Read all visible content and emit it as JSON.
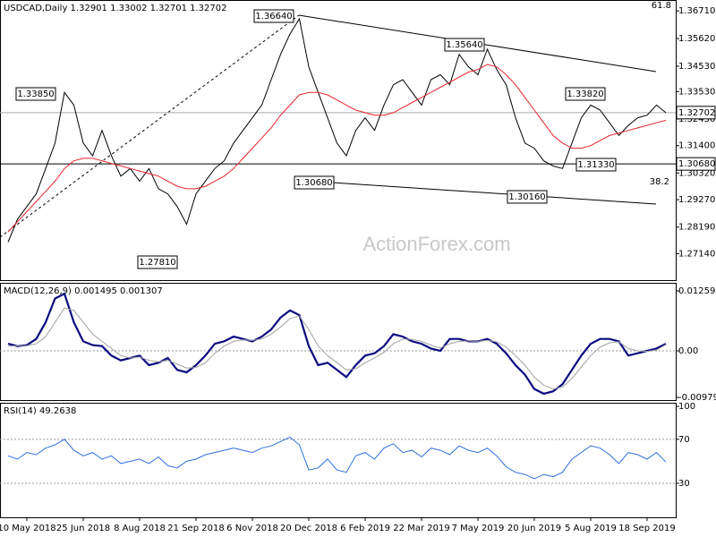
{
  "watermark": "ActionForex.com",
  "chart_data": [
    {
      "type": "line",
      "title": "USDCAD,Daily  1.32901 1.33002 1.32701 1.32702",
      "ylim": [
        1.261,
        1.3714
      ],
      "yticks": [
        {
          "value": 1.3671,
          "label": "1.36710"
        },
        {
          "value": 1.3562,
          "label": "1.35620"
        },
        {
          "value": 1.3453,
          "label": "1.34530"
        },
        {
          "value": 1.3353,
          "label": "1.33530"
        },
        {
          "value": 1.3245,
          "label": "1.32450"
        },
        {
          "value": 1.314,
          "label": "1.31400"
        },
        {
          "value": 1.3032,
          "label": "1.30320"
        },
        {
          "value": 1.2927,
          "label": "1.29270"
        },
        {
          "value": 1.2819,
          "label": "1.28190"
        },
        {
          "value": 1.2714,
          "label": "1.27140"
        }
      ],
      "series": [
        {
          "color": "#000000",
          "values": [
            1.276,
            1.285,
            1.29,
            1.295,
            1.305,
            1.315,
            1.335,
            1.33,
            1.315,
            1.31,
            1.32,
            1.31,
            1.302,
            1.305,
            1.3,
            1.305,
            1.297,
            1.295,
            1.29,
            1.283,
            1.295,
            1.3,
            1.305,
            1.308,
            1.315,
            1.32,
            1.325,
            1.33,
            1.34,
            1.35,
            1.358,
            1.364,
            1.345,
            1.335,
            1.325,
            1.315,
            1.31,
            1.32,
            1.325,
            1.32,
            1.33,
            1.338,
            1.34,
            1.335,
            1.33,
            1.34,
            1.342,
            1.338,
            1.35,
            1.345,
            1.342,
            1.352,
            1.344,
            1.338,
            1.325,
            1.315,
            1.313,
            1.308,
            1.306,
            1.305,
            1.315,
            1.325,
            1.33,
            1.328,
            1.323,
            1.318,
            1.322,
            1.325,
            1.326,
            1.33,
            1.327
          ]
        },
        {
          "color": "#e8242c",
          "values": [
            1.28,
            1.284,
            1.288,
            1.292,
            1.296,
            1.3,
            1.305,
            1.308,
            1.309,
            1.309,
            1.308,
            1.307,
            1.306,
            1.305,
            1.304,
            1.303,
            1.302,
            1.3,
            1.298,
            1.297,
            1.297,
            1.298,
            1.3,
            1.302,
            1.305,
            1.309,
            1.313,
            1.317,
            1.321,
            1.326,
            1.33,
            1.334,
            1.335,
            1.335,
            1.334,
            1.332,
            1.33,
            1.328,
            1.327,
            1.326,
            1.326,
            1.327,
            1.329,
            1.331,
            1.333,
            1.335,
            1.337,
            1.339,
            1.341,
            1.343,
            1.344,
            1.346,
            1.345,
            1.342,
            1.338,
            1.333,
            1.328,
            1.323,
            1.318,
            1.315,
            1.313,
            1.313,
            1.314,
            1.316,
            1.318,
            1.319,
            1.32,
            1.321,
            1.322,
            1.323,
            1.324
          ]
        }
      ],
      "annotations": [
        "1.36640",
        "1.35640",
        "1.33850",
        "1.33820",
        "1.31330",
        "1.30680",
        "1.30160",
        "1.27810"
      ],
      "fib_levels": [
        61.8,
        38.2
      ],
      "price_tags": [
        {
          "value": 1.32702,
          "label": "1.32702"
        },
        {
          "value": 1.3068,
          "label": "1.30680"
        }
      ]
    },
    {
      "type": "line",
      "title": "MACD(12,26,9) 0.001495 0.001307",
      "ylim": [
        -0.01034,
        0.0143
      ],
      "yticks": [
        0.012599,
        {
          "value": 0,
          "label": "0.00"
        },
        -0.00979
      ],
      "levels": [
        0
      ],
      "series": [
        {
          "color": "#0a0a80",
          "values": [
            0.0015,
            0.001,
            0.0012,
            0.0025,
            0.006,
            0.011,
            0.012,
            0.006,
            0.002,
            0.0012,
            0.001,
            -0.001,
            -0.002,
            -0.0015,
            -0.001,
            -0.003,
            -0.0025,
            -0.0015,
            -0.004,
            -0.0045,
            -0.003,
            -0.001,
            0.0015,
            0.002,
            0.003,
            0.0025,
            0.002,
            0.003,
            0.0045,
            0.007,
            0.0085,
            0.0075,
            0.001,
            -0.003,
            -0.0025,
            -0.004,
            -0.0055,
            -0.003,
            -0.001,
            -0.0005,
            0.001,
            0.0035,
            0.003,
            0.002,
            0.0015,
            0.0005,
            0,
            0.0025,
            0.0025,
            0.002,
            0.002,
            0.0025,
            0.0015,
            -0.0005,
            -0.003,
            -0.005,
            -0.008,
            -0.009,
            -0.0085,
            -0.007,
            -0.004,
            -0.001,
            0.0015,
            0.0025,
            0.0025,
            0.002,
            -0.001,
            -0.0005,
            0,
            0.0005,
            0.0015
          ]
        },
        {
          "color": "#a0a0a0",
          "values": [
            0.001,
            0.0011,
            0.0011,
            0.0015,
            0.003,
            0.006,
            0.009,
            0.0085,
            0.006,
            0.0035,
            0.002,
            0.0005,
            -0.001,
            -0.0015,
            -0.0013,
            -0.002,
            -0.0023,
            -0.002,
            -0.0028,
            -0.0036,
            -0.0035,
            -0.0025,
            -0.0005,
            0.001,
            0.002,
            0.0023,
            0.0022,
            0.0025,
            0.0035,
            0.005,
            0.0068,
            0.0073,
            0.0045,
            0.001,
            -0.001,
            -0.0025,
            -0.004,
            -0.0038,
            -0.0025,
            -0.0015,
            -0.0003,
            0.0015,
            0.0025,
            0.0024,
            0.002,
            0.0012,
            0.0006,
            0.0015,
            0.002,
            0.0021,
            0.002,
            0.0022,
            0.0019,
            0.0008,
            -0.001,
            -0.003,
            -0.0055,
            -0.0072,
            -0.008,
            -0.0076,
            -0.0058,
            -0.0034,
            -0.001,
            0.0008,
            0.0017,
            0.0019,
            0.0005,
            0,
            -0.0001,
            0.0002,
            0.0013
          ]
        }
      ]
    },
    {
      "type": "line",
      "title": "RSI(14) 49.2638",
      "ylim": [
        -1,
        103.3
      ],
      "yticks": [
        100,
        70,
        30
      ],
      "levels": [
        70,
        30
      ],
      "series": [
        {
          "color": "#2f6fe0",
          "values": [
            55,
            52,
            58,
            56,
            62,
            65,
            70,
            60,
            55,
            58,
            52,
            55,
            48,
            50,
            52,
            48,
            54,
            46,
            44,
            50,
            52,
            56,
            58,
            60,
            62,
            60,
            58,
            62,
            64,
            68,
            72,
            65,
            42,
            44,
            52,
            42,
            40,
            55,
            58,
            52,
            62,
            66,
            58,
            60,
            54,
            62,
            60,
            56,
            64,
            60,
            58,
            62,
            55,
            45,
            40,
            38,
            34,
            38,
            36,
            40,
            52,
            58,
            64,
            62,
            56,
            48,
            58,
            56,
            52,
            58,
            49.2638
          ]
        }
      ],
      "categories": [
        null,
        null,
        "10 May 2018",
        null,
        null,
        null,
        null,
        null,
        "25 Jun 2018",
        null,
        null,
        null,
        null,
        null,
        "8 Aug 2018",
        null,
        null,
        null,
        null,
        null,
        "21 Sep 2018",
        null,
        null,
        null,
        null,
        null,
        "6 Nov 2018",
        null,
        null,
        null,
        null,
        null,
        "20 Dec 2018",
        null,
        null,
        null,
        null,
        null,
        "6 Feb 2019",
        null,
        null,
        null,
        null,
        null,
        "22 Mar 2019",
        null,
        null,
        null,
        null,
        null,
        "7 May 2019",
        null,
        null,
        null,
        null,
        null,
        "20 Jun 2019",
        null,
        null,
        null,
        null,
        null,
        "5 Aug 2019",
        null,
        null,
        null,
        null,
        null,
        "18 Sep 2019",
        null,
        null
      ]
    }
  ]
}
